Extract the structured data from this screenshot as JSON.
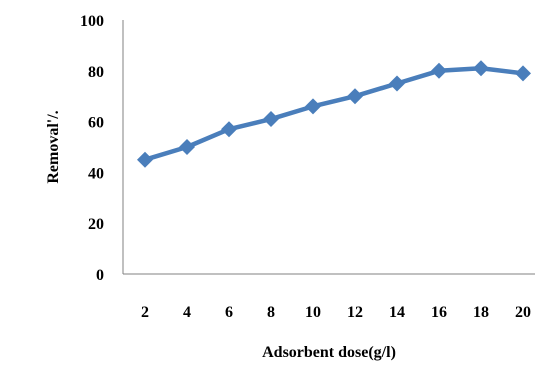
{
  "chart_data": {
    "type": "line",
    "title": "",
    "xlabel": "Adsorbent dose(g/l)",
    "ylabel": "Removal'/.",
    "x": [
      2,
      4,
      6,
      8,
      10,
      12,
      14,
      16,
      18,
      20
    ],
    "series": [
      {
        "values": [
          45,
          50,
          57,
          61,
          66,
          70,
          75,
          80,
          81,
          79
        ]
      }
    ],
    "x_tick_labels": [
      "2",
      "4",
      "6",
      "8",
      "10",
      "12",
      "14",
      "16",
      "18",
      "20"
    ],
    "y_tick_labels": [
      "0",
      "20",
      "40",
      "60",
      "80",
      "100"
    ],
    "ylim": [
      0,
      100
    ],
    "grid": false,
    "legend": "none",
    "marker": "diamond",
    "colors": {
      "series": "#4A7EBB",
      "axis": "#808080"
    }
  }
}
